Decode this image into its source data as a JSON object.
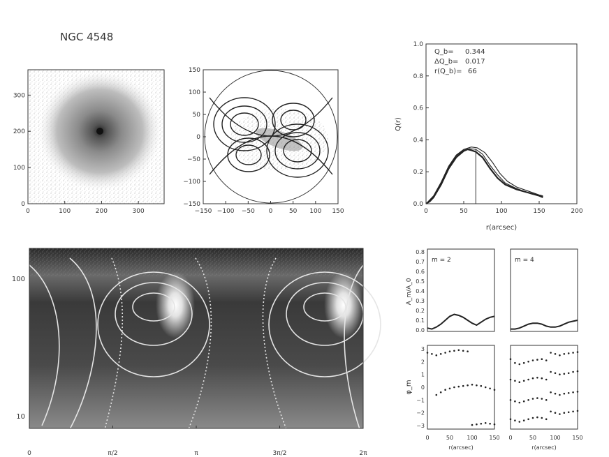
{
  "figure_title": "NGC 4548",
  "chart_data": [
    {
      "type": "heatmap",
      "id": "image",
      "title": "",
      "xlabel": "",
      "ylabel": "",
      "xlim": [
        0,
        370
      ],
      "ylim": [
        0,
        370
      ],
      "xticks": [
        "0",
        "100",
        "200",
        "300"
      ],
      "yticks": [
        "0",
        "100",
        "200",
        "300"
      ]
    },
    {
      "type": "heatmap",
      "id": "contour-map",
      "title": "",
      "xlabel": "",
      "ylabel": "",
      "xlim": [
        -150,
        150
      ],
      "ylim": [
        -150,
        150
      ],
      "xticks": [
        "−150",
        "−100",
        "−50",
        "0",
        "50",
        "100",
        "150"
      ],
      "yticks": [
        "−150",
        "−100",
        "−50",
        "0",
        "50",
        "100",
        "150"
      ]
    },
    {
      "type": "line",
      "id": "q-profile",
      "xlabel": "r(arcsec)",
      "ylabel": "Q(r)",
      "xlim": [
        0,
        200
      ],
      "ylim": [
        0,
        1
      ],
      "xticks": [
        "0",
        "50",
        "100",
        "150",
        "200"
      ],
      "yticks": [
        "0.0",
        "0.2",
        "0.4",
        "0.6",
        "0.8",
        "1.0"
      ],
      "annotations": [
        {
          "label": "Q_b=",
          "value": "0.344"
        },
        {
          "label": "ΔQ_b=",
          "value": "0.017"
        },
        {
          "label": "r(Q_b)=",
          "value": "66"
        }
      ],
      "vline_x": 66,
      "series": [
        {
          "values": [
            [
              0,
              0.0
            ],
            [
              5,
              0.015
            ],
            [
              10,
              0.04
            ],
            [
              20,
              0.12
            ],
            [
              30,
              0.22
            ],
            [
              40,
              0.29
            ],
            [
              50,
              0.33
            ],
            [
              55,
              0.34
            ],
            [
              60,
              0.335
            ],
            [
              66,
              0.325
            ],
            [
              75,
              0.29
            ],
            [
              85,
              0.22
            ],
            [
              95,
              0.16
            ],
            [
              105,
              0.12
            ],
            [
              120,
              0.09
            ],
            [
              135,
              0.07
            ],
            [
              150,
              0.05
            ],
            [
              155,
              0.04
            ]
          ]
        },
        {
          "values": [
            [
              0,
              0.0
            ],
            [
              10,
              0.045
            ],
            [
              20,
              0.13
            ],
            [
              30,
              0.23
            ],
            [
              40,
              0.3
            ],
            [
              50,
              0.335
            ],
            [
              58,
              0.345
            ],
            [
              66,
              0.34
            ],
            [
              75,
              0.31
            ],
            [
              85,
              0.24
            ],
            [
              95,
              0.18
            ],
            [
              105,
              0.13
            ],
            [
              120,
              0.095
            ],
            [
              135,
              0.07
            ],
            [
              150,
              0.05
            ],
            [
              155,
              0.045
            ]
          ]
        },
        {
          "values": [
            [
              0,
              0.0
            ],
            [
              10,
              0.05
            ],
            [
              20,
              0.135
            ],
            [
              30,
              0.235
            ],
            [
              40,
              0.305
            ],
            [
              50,
              0.34
            ],
            [
              60,
              0.355
            ],
            [
              68,
              0.35
            ],
            [
              78,
              0.32
            ],
            [
              88,
              0.26
            ],
            [
              98,
              0.19
            ],
            [
              108,
              0.14
            ],
            [
              120,
              0.105
            ],
            [
              135,
              0.08
            ],
            [
              150,
              0.055
            ],
            [
              155,
              0.05
            ]
          ]
        }
      ]
    },
    {
      "type": "heatmap",
      "id": "polar-map",
      "xlabel": "",
      "ylabel": "",
      "xticks": [
        "0",
        "π/2",
        "π",
        "3π/2",
        "2π"
      ],
      "yticks": [
        "100",
        "10"
      ]
    },
    {
      "type": "line",
      "id": "amplitude-m2",
      "ylabel": "A_m/A_0",
      "label": "m = 2",
      "xlim": [
        0,
        150
      ],
      "ylim": [
        0,
        0.8
      ],
      "yticks": [
        "0.0",
        "0.1",
        "0.2",
        "0.3",
        "0.4",
        "0.5",
        "0.6",
        "0.7",
        "0.8"
      ],
      "x": [
        0,
        10,
        20,
        30,
        40,
        50,
        60,
        70,
        80,
        90,
        100,
        110,
        120,
        130,
        140,
        150
      ],
      "values": [
        0.02,
        0.01,
        0.03,
        0.06,
        0.1,
        0.14,
        0.16,
        0.15,
        0.13,
        0.1,
        0.07,
        0.05,
        0.08,
        0.11,
        0.13,
        0.14
      ]
    },
    {
      "type": "line",
      "id": "amplitude-m4",
      "label": "m = 4",
      "xlim": [
        0,
        150
      ],
      "ylim": [
        0,
        0.8
      ],
      "x": [
        0,
        10,
        20,
        30,
        40,
        50,
        60,
        70,
        80,
        90,
        100,
        110,
        120,
        130,
        140,
        150
      ],
      "values": [
        0.01,
        0.01,
        0.02,
        0.04,
        0.06,
        0.07,
        0.07,
        0.06,
        0.04,
        0.03,
        0.03,
        0.04,
        0.06,
        0.08,
        0.09,
        0.1
      ]
    },
    {
      "type": "scatter",
      "id": "phase-m2",
      "ylabel": "φ_m",
      "xlabel": "r(arcsec)",
      "xlim": [
        0,
        150
      ],
      "ylim": [
        -3,
        3
      ],
      "xticks": [
        "0",
        "50",
        "100",
        "150"
      ],
      "yticks": [
        "3",
        "2",
        "1",
        "0",
        "−1",
        "−2",
        "−3"
      ],
      "series": [
        {
          "x": [
            0,
            10,
            20,
            30,
            40,
            50,
            60,
            70,
            80,
            90
          ],
          "values": [
            2.7,
            2.6,
            2.5,
            2.6,
            2.7,
            2.8,
            2.85,
            2.9,
            2.85,
            2.8
          ]
        },
        {
          "x": [
            20,
            30,
            40,
            50,
            60,
            70,
            80,
            90,
            100,
            110,
            120,
            130,
            140,
            150
          ],
          "values": [
            -0.6,
            -0.4,
            -0.2,
            -0.1,
            0.0,
            0.05,
            0.1,
            0.15,
            0.2,
            0.15,
            0.1,
            0.0,
            -0.1,
            -0.2
          ]
        },
        {
          "x": [
            100,
            110,
            120,
            130,
            140,
            150
          ],
          "values": [
            -2.95,
            -2.9,
            -2.85,
            -2.8,
            -2.85,
            -2.9
          ]
        }
      ]
    },
    {
      "type": "scatter",
      "id": "phase-m4",
      "xlabel": "r(arcsec)",
      "xlim": [
        0,
        150
      ],
      "ylim": [
        -3,
        3
      ],
      "xticks": [
        "0",
        "50",
        "100",
        "150"
      ],
      "series": [
        {
          "x": [
            0,
            10,
            20,
            30,
            40,
            50,
            60,
            70,
            80
          ],
          "values": [
            2.2,
            1.9,
            1.8,
            1.9,
            2.0,
            2.1,
            2.15,
            2.2,
            2.1
          ]
        },
        {
          "x": [
            0,
            10,
            20,
            30,
            40,
            50,
            60,
            70,
            80
          ],
          "values": [
            0.6,
            0.5,
            0.4,
            0.5,
            0.6,
            0.7,
            0.75,
            0.7,
            0.6
          ]
        },
        {
          "x": [
            0,
            10,
            20,
            30,
            40,
            50,
            60,
            70,
            80
          ],
          "values": [
            -1.0,
            -1.1,
            -1.2,
            -1.1,
            -1.0,
            -0.9,
            -0.85,
            -0.9,
            -1.0
          ]
        },
        {
          "x": [
            0,
            10,
            20,
            30,
            40,
            50,
            60,
            70,
            80
          ],
          "values": [
            -2.5,
            -2.6,
            -2.7,
            -2.6,
            -2.5,
            -2.4,
            -2.35,
            -2.4,
            -2.5
          ]
        },
        {
          "x": [
            90,
            100,
            110,
            120,
            130,
            140,
            150
          ],
          "values": [
            2.7,
            2.6,
            2.5,
            2.6,
            2.65,
            2.7,
            2.75
          ]
        },
        {
          "x": [
            90,
            100,
            110,
            120,
            130,
            140,
            150
          ],
          "values": [
            1.2,
            1.1,
            1.0,
            1.05,
            1.1,
            1.2,
            1.25
          ]
        },
        {
          "x": [
            90,
            100,
            110,
            120,
            130,
            140,
            150
          ],
          "values": [
            -0.4,
            -0.5,
            -0.6,
            -0.5,
            -0.45,
            -0.4,
            -0.35
          ]
        },
        {
          "x": [
            90,
            100,
            110,
            120,
            130,
            140,
            150
          ],
          "values": [
            -1.9,
            -2.0,
            -2.1,
            -2.0,
            -1.95,
            -1.9,
            -1.85
          ]
        }
      ]
    }
  ]
}
